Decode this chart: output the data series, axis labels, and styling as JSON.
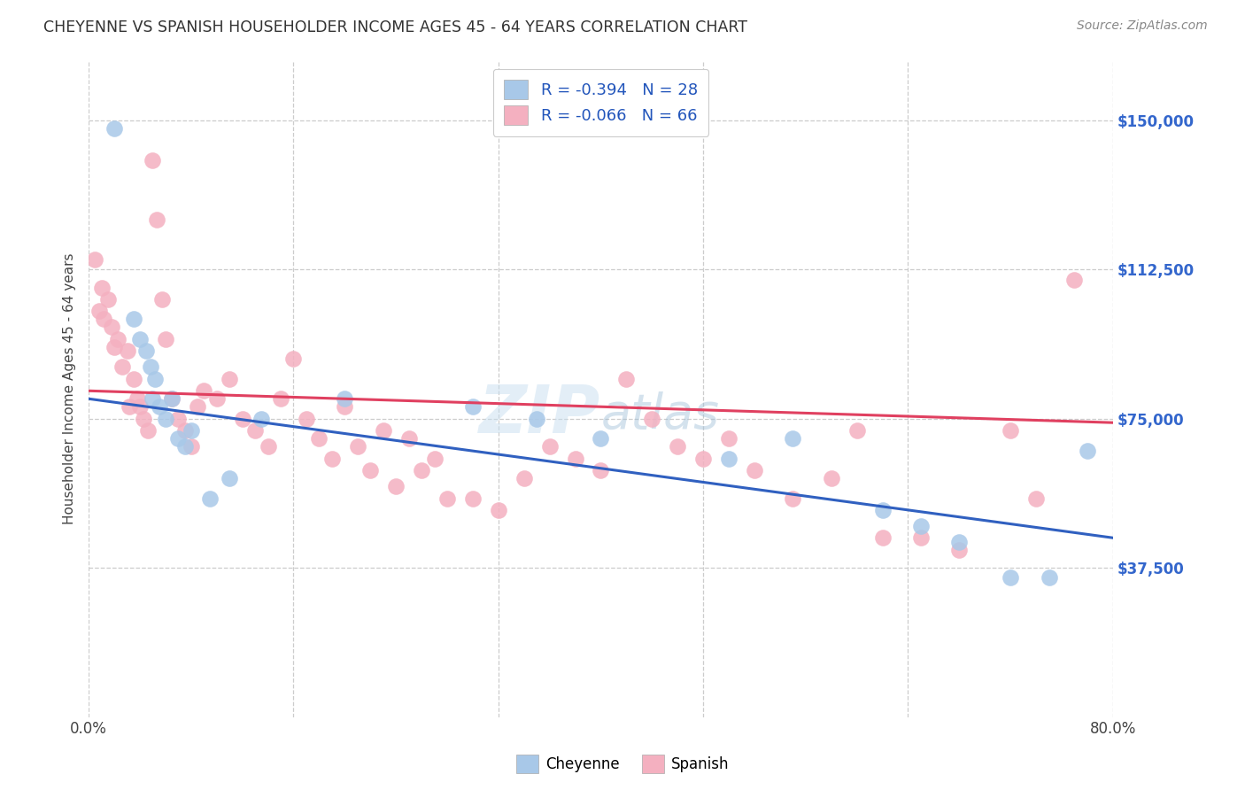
{
  "title": "CHEYENNE VS SPANISH HOUSEHOLDER INCOME AGES 45 - 64 YEARS CORRELATION CHART",
  "source": "Source: ZipAtlas.com",
  "ylabel": "Householder Income Ages 45 - 64 years",
  "ytick_labels": [
    "$37,500",
    "$75,000",
    "$112,500",
    "$150,000"
  ],
  "ytick_values": [
    37500,
    75000,
    112500,
    150000
  ],
  "xlim": [
    0,
    80
  ],
  "ylim": [
    0,
    165000
  ],
  "legend_r1": "-0.394",
  "legend_n1": "28",
  "legend_r2": "-0.066",
  "legend_n2": "66",
  "cheyenne_color": "#a8c8e8",
  "spanish_color": "#f4b0c0",
  "blue_line_color": "#3060c0",
  "pink_line_color": "#e04060",
  "background_color": "#ffffff",
  "cheyenne_x": [
    2.0,
    3.5,
    4.0,
    4.5,
    4.8,
    5.0,
    5.2,
    5.5,
    6.0,
    6.5,
    7.0,
    7.5,
    8.0,
    9.5,
    11.0,
    13.5,
    20.0,
    30.0,
    35.0,
    40.0,
    50.0,
    55.0,
    62.0,
    65.0,
    68.0,
    72.0,
    75.0,
    78.0
  ],
  "cheyenne_y": [
    148000,
    100000,
    95000,
    92000,
    88000,
    80000,
    85000,
    78000,
    75000,
    80000,
    70000,
    68000,
    72000,
    55000,
    60000,
    75000,
    80000,
    78000,
    75000,
    70000,
    65000,
    70000,
    52000,
    48000,
    44000,
    35000,
    35000,
    67000
  ],
  "spanish_x": [
    0.5,
    0.8,
    1.0,
    1.2,
    1.5,
    1.8,
    2.0,
    2.3,
    2.6,
    3.0,
    3.2,
    3.5,
    3.8,
    4.0,
    4.3,
    4.6,
    5.0,
    5.3,
    5.7,
    6.0,
    6.5,
    7.0,
    7.5,
    8.0,
    8.5,
    9.0,
    10.0,
    11.0,
    12.0,
    13.0,
    14.0,
    15.0,
    16.0,
    17.0,
    18.0,
    19.0,
    20.0,
    21.0,
    22.0,
    23.0,
    24.0,
    25.0,
    26.0,
    27.0,
    28.0,
    30.0,
    32.0,
    34.0,
    36.0,
    38.0,
    40.0,
    42.0,
    44.0,
    46.0,
    48.0,
    50.0,
    52.0,
    55.0,
    58.0,
    60.0,
    62.0,
    65.0,
    68.0,
    72.0,
    74.0,
    77.0
  ],
  "spanish_y": [
    115000,
    102000,
    108000,
    100000,
    105000,
    98000,
    93000,
    95000,
    88000,
    92000,
    78000,
    85000,
    80000,
    78000,
    75000,
    72000,
    140000,
    125000,
    105000,
    95000,
    80000,
    75000,
    72000,
    68000,
    78000,
    82000,
    80000,
    85000,
    75000,
    72000,
    68000,
    80000,
    90000,
    75000,
    70000,
    65000,
    78000,
    68000,
    62000,
    72000,
    58000,
    70000,
    62000,
    65000,
    55000,
    55000,
    52000,
    60000,
    68000,
    65000,
    62000,
    85000,
    75000,
    68000,
    65000,
    70000,
    62000,
    55000,
    60000,
    72000,
    45000,
    45000,
    42000,
    72000,
    55000,
    110000
  ]
}
